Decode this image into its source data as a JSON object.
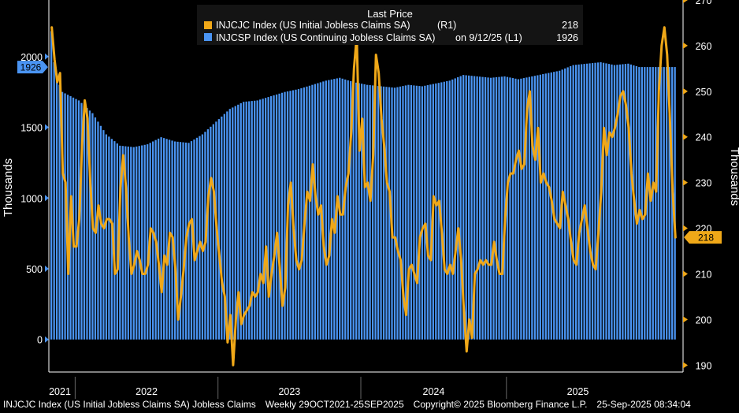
{
  "chart_data": {
    "type": "bar+line",
    "legend": {
      "header": "Last Price",
      "placement": "top-center",
      "entries": [
        {
          "name": "INJCJC Index (US Initial Jobless Claims SA)",
          "axis_tag": "(R1)",
          "last": "218",
          "color": "#f0a818"
        },
        {
          "name": "INJCSP Index (US Continuing Jobless Claims SA)",
          "axis_tag": "on 9/12/25  (L1)",
          "last": "1926",
          "color": "#4a94f2"
        }
      ]
    },
    "left_axis": {
      "label": "Thousands",
      "ticks": [
        0,
        500,
        1000,
        1500,
        2000
      ],
      "range": [
        -230,
        2400
      ],
      "last_value_tag": "1926"
    },
    "right_axis": {
      "label": "Thousands",
      "ticks": [
        190,
        200,
        210,
        220,
        230,
        240,
        250,
        260,
        270
      ],
      "range": [
        188.5,
        270
      ],
      "last_value_tag": "218"
    },
    "x_axis": {
      "year_labels": [
        "2021",
        "2022",
        "2023",
        "2024",
        "2025"
      ]
    },
    "continuing_claims": {
      "name": "INJCSP Index (US Continuing Jobless Claims SA)",
      "color": "#4a94f2",
      "anchors": [
        [
          0,
          2180
        ],
        [
          1,
          1960
        ],
        [
          2,
          1880
        ],
        [
          3,
          1800
        ],
        [
          4,
          1750
        ],
        [
          5,
          1740
        ],
        [
          10,
          1690
        ],
        [
          15,
          1600
        ],
        [
          20,
          1450
        ],
        [
          25,
          1370
        ],
        [
          30,
          1360
        ],
        [
          35,
          1380
        ],
        [
          40,
          1430
        ],
        [
          45,
          1400
        ],
        [
          50,
          1390
        ],
        [
          55,
          1450
        ],
        [
          60,
          1540
        ],
        [
          65,
          1630
        ],
        [
          70,
          1680
        ],
        [
          75,
          1690
        ],
        [
          80,
          1720
        ],
        [
          85,
          1750
        ],
        [
          90,
          1770
        ],
        [
          95,
          1800
        ],
        [
          100,
          1830
        ],
        [
          105,
          1850
        ],
        [
          110,
          1820
        ],
        [
          115,
          1800
        ],
        [
          120,
          1790
        ],
        [
          125,
          1780
        ],
        [
          130,
          1800
        ],
        [
          135,
          1790
        ],
        [
          140,
          1810
        ],
        [
          145,
          1830
        ],
        [
          150,
          1870
        ],
        [
          155,
          1860
        ],
        [
          160,
          1850
        ],
        [
          165,
          1860
        ],
        [
          170,
          1840
        ],
        [
          175,
          1860
        ],
        [
          180,
          1880
        ],
        [
          185,
          1900
        ],
        [
          190,
          1940
        ],
        [
          195,
          1950
        ],
        [
          200,
          1960
        ],
        [
          205,
          1940
        ],
        [
          210,
          1950
        ],
        [
          214,
          1926
        ]
      ]
    },
    "initial_claims": {
      "name": "INJCJC Index (US Initial Jobless Claims SA)",
      "color": "#f0a818",
      "values": [
        264,
        257,
        252,
        254,
        232,
        230,
        210,
        227,
        216,
        216,
        222,
        238,
        248,
        244,
        230,
        220,
        219,
        225,
        221,
        220,
        222,
        222,
        221,
        210,
        211,
        229,
        236,
        229,
        218,
        210,
        212,
        215,
        213,
        210,
        210,
        212,
        220,
        219,
        217,
        212,
        206,
        214,
        212,
        219,
        218,
        211,
        200,
        205,
        211,
        218,
        221,
        222,
        213,
        215,
        217,
        215,
        217,
        227,
        231,
        228,
        220,
        214,
        208,
        205,
        195,
        201,
        190,
        200,
        206,
        199,
        201,
        202,
        203,
        206,
        205,
        206,
        210,
        208,
        216,
        205,
        210,
        214,
        219,
        211,
        203,
        207,
        225,
        230,
        220,
        213,
        211,
        213,
        221,
        228,
        226,
        234,
        227,
        223,
        225,
        216,
        212,
        214,
        222,
        219,
        227,
        223,
        223,
        229,
        232,
        241,
        255,
        262,
        237,
        244,
        229,
        230,
        226,
        236,
        258,
        254,
        244,
        238,
        230,
        228,
        218,
        218,
        215,
        213,
        205,
        201,
        211,
        212,
        210,
        208,
        218,
        220,
        221,
        214,
        213,
        227,
        225,
        226,
        219,
        211,
        210,
        212,
        210,
        215,
        220,
        213,
        202,
        193,
        200,
        196,
        210,
        211,
        213,
        212,
        213,
        212,
        212,
        217,
        213,
        210,
        210,
        222,
        230,
        232,
        232,
        235,
        237,
        233,
        234,
        246,
        250,
        238,
        235,
        242,
        230,
        232,
        230,
        229,
        226,
        222,
        221,
        220,
        228,
        225,
        222,
        217,
        213,
        212,
        219,
        222,
        225,
        220,
        215,
        212,
        211,
        219,
        228,
        242,
        236,
        241,
        240,
        242,
        245,
        249,
        250,
        247,
        242,
        232,
        226,
        221,
        224,
        222,
        223,
        232,
        226,
        230,
        228,
        250,
        260,
        264,
        258,
        244,
        228,
        218
      ]
    }
  },
  "footer": {
    "title": "INJCJC Index (US Initial Jobless Claims SA) Jobless Claims",
    "frequency": "Weekly 29OCT2021-25SEP2025",
    "copyright": "Copyright© 2025 Bloomberg Finance L.P.",
    "timestamp": "25-Sep-2025 08:34:04"
  }
}
